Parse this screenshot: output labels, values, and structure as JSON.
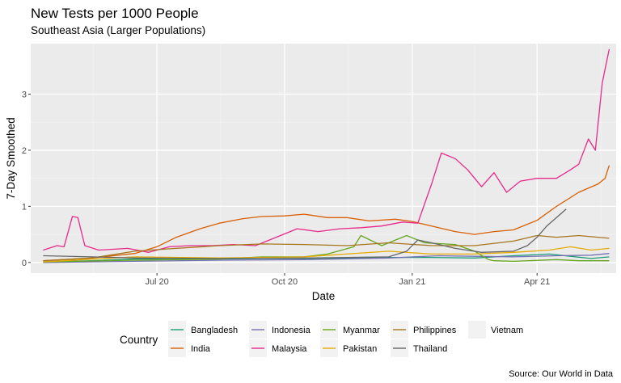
{
  "chart_data": {
    "type": "line",
    "title": "New Tests per 1000 People",
    "subtitle": "Southeast Asia (Larger Populations)",
    "xlabel": "Date",
    "ylabel": "7-Day Smoothed",
    "caption": "Source:  Our World in Data",
    "x_domain": [
      "2020-04-01",
      "2021-05-28"
    ],
    "ylim": [
      -0.19,
      3.9
    ],
    "x_ticks": [
      {
        "date": "2020-07-01",
        "label": "Jul 20"
      },
      {
        "date": "2020-10-01",
        "label": "Oct 20"
      },
      {
        "date": "2021-01-01",
        "label": "Jan 21"
      },
      {
        "date": "2021-04-01",
        "label": "Apr 21"
      }
    ],
    "y_ticks": [
      0,
      1,
      2,
      3
    ],
    "grid": true,
    "legend": {
      "title": "Country",
      "position": "bottom",
      "rows": [
        [
          "Bangladesh",
          "Indonesia",
          "Myanmar",
          "Philippines",
          "Vietnam"
        ],
        [
          "India",
          "Malaysia",
          "Pakistan",
          "Thailand"
        ]
      ]
    },
    "series": [
      {
        "name": "Bangladesh",
        "color": "#1B9E77",
        "x": [
          "2020-04-10",
          "2020-05-15",
          "2020-06-15",
          "2020-07-15",
          "2020-08-15",
          "2020-09-15",
          "2020-10-15",
          "2020-11-15",
          "2020-12-15",
          "2021-01-15",
          "2021-02-15",
          "2021-03-15",
          "2021-04-10",
          "2021-04-25",
          "2021-05-10",
          "2021-05-23"
        ],
        "y": [
          0.01,
          0.03,
          0.06,
          0.07,
          0.06,
          0.07,
          0.07,
          0.08,
          0.09,
          0.09,
          0.08,
          0.12,
          0.15,
          0.11,
          0.07,
          0.1
        ]
      },
      {
        "name": "India",
        "color": "#D95F02",
        "x": [
          "2020-04-10",
          "2020-05-15",
          "2020-06-15",
          "2020-07-01",
          "2020-07-15",
          "2020-08-01",
          "2020-08-15",
          "2020-09-01",
          "2020-09-15",
          "2020-10-01",
          "2020-10-15",
          "2020-11-01",
          "2020-11-15",
          "2020-12-01",
          "2020-12-20",
          "2021-01-01",
          "2021-01-15",
          "2021-02-01",
          "2021-02-15",
          "2021-03-01",
          "2021-03-15",
          "2021-04-01",
          "2021-04-15",
          "2021-05-01",
          "2021-05-15",
          "2021-05-20",
          "2021-05-23"
        ],
        "y": [
          0.03,
          0.08,
          0.16,
          0.28,
          0.45,
          0.6,
          0.7,
          0.78,
          0.82,
          0.83,
          0.86,
          0.8,
          0.8,
          0.74,
          0.77,
          0.73,
          0.65,
          0.55,
          0.5,
          0.55,
          0.58,
          0.75,
          1.0,
          1.25,
          1.4,
          1.5,
          1.73
        ]
      },
      {
        "name": "Indonesia",
        "color": "#7570B3",
        "x": [
          "2020-04-10",
          "2020-06-15",
          "2020-08-15",
          "2020-10-15",
          "2020-12-15",
          "2021-01-20",
          "2021-02-15",
          "2021-03-15",
          "2021-04-15",
          "2021-05-10",
          "2021-05-23"
        ],
        "y": [
          0.0,
          0.02,
          0.04,
          0.05,
          0.08,
          0.12,
          0.11,
          0.1,
          0.12,
          0.13,
          0.16
        ]
      },
      {
        "name": "Malaysia",
        "color": "#E7298A",
        "x": [
          "2020-04-10",
          "2020-04-20",
          "2020-04-25",
          "2020-05-01",
          "2020-05-05",
          "2020-05-10",
          "2020-05-20",
          "2020-06-10",
          "2020-06-25",
          "2020-07-10",
          "2020-07-25",
          "2020-08-10",
          "2020-08-25",
          "2020-09-10",
          "2020-09-25",
          "2020-10-10",
          "2020-10-25",
          "2020-11-10",
          "2020-11-25",
          "2020-12-10",
          "2020-12-25",
          "2021-01-05",
          "2021-01-15",
          "2021-01-22",
          "2021-02-01",
          "2021-02-10",
          "2021-02-20",
          "2021-03-01",
          "2021-03-10",
          "2021-03-20",
          "2021-04-01",
          "2021-04-15",
          "2021-04-25",
          "2021-05-01",
          "2021-05-08",
          "2021-05-13",
          "2021-05-18",
          "2021-05-23"
        ],
        "y": [
          0.22,
          0.3,
          0.28,
          0.82,
          0.8,
          0.3,
          0.22,
          0.25,
          0.18,
          0.28,
          0.3,
          0.3,
          0.32,
          0.3,
          0.45,
          0.6,
          0.55,
          0.6,
          0.62,
          0.65,
          0.72,
          0.7,
          1.4,
          1.95,
          1.85,
          1.65,
          1.35,
          1.6,
          1.25,
          1.45,
          1.5,
          1.5,
          1.65,
          1.75,
          2.2,
          2.0,
          3.2,
          3.8
        ]
      },
      {
        "name": "Myanmar",
        "color": "#66A61E",
        "x": [
          "2020-04-10",
          "2020-06-15",
          "2020-08-15",
          "2020-09-15",
          "2020-10-15",
          "2020-11-01",
          "2020-11-20",
          "2020-11-25",
          "2020-12-10",
          "2020-12-28",
          "2021-01-10",
          "2021-02-01",
          "2021-02-15",
          "2021-02-25",
          "2021-03-01",
          "2021-03-15",
          "2021-04-15",
          "2021-05-01",
          "2021-05-23"
        ],
        "y": [
          0.01,
          0.04,
          0.06,
          0.1,
          0.1,
          0.15,
          0.28,
          0.48,
          0.3,
          0.48,
          0.35,
          0.32,
          0.2,
          0.05,
          0.03,
          0.02,
          0.05,
          0.03,
          0.03
        ]
      },
      {
        "name": "Pakistan",
        "color": "#E6AB02",
        "x": [
          "2020-04-10",
          "2020-06-15",
          "2020-08-15",
          "2020-10-15",
          "2020-12-15",
          "2021-01-15",
          "2021-02-15",
          "2021-03-15",
          "2021-04-10",
          "2021-04-25",
          "2021-05-10",
          "2021-05-23"
        ],
        "y": [
          0.01,
          0.1,
          0.08,
          0.1,
          0.2,
          0.15,
          0.15,
          0.18,
          0.22,
          0.28,
          0.22,
          0.25
        ]
      },
      {
        "name": "Philippines",
        "color": "#A6761D",
        "x": [
          "2020-04-10",
          "2020-05-15",
          "2020-06-15",
          "2020-07-15",
          "2020-08-15",
          "2020-09-15",
          "2020-10-15",
          "2020-11-15",
          "2020-12-15",
          "2021-01-15",
          "2021-02-15",
          "2021-03-15",
          "2021-04-01",
          "2021-04-15",
          "2021-05-01",
          "2021-05-23"
        ],
        "y": [
          0.03,
          0.08,
          0.2,
          0.25,
          0.3,
          0.33,
          0.32,
          0.3,
          0.35,
          0.3,
          0.3,
          0.38,
          0.48,
          0.45,
          0.48,
          0.43
        ]
      },
      {
        "name": "Thailand",
        "color": "#666666",
        "x": [
          "2020-04-10",
          "2020-05-15",
          "2020-06-15",
          "2020-08-15",
          "2020-10-15",
          "2020-12-15",
          "2020-12-28",
          "2021-01-05",
          "2021-01-15",
          "2021-02-01",
          "2021-02-20",
          "2021-03-15",
          "2021-03-25",
          "2021-04-01",
          "2021-04-08",
          "2021-04-15",
          "2021-04-22"
        ],
        "y": [
          0.12,
          0.1,
          0.08,
          0.07,
          0.08,
          0.1,
          0.2,
          0.4,
          0.35,
          0.25,
          0.18,
          0.2,
          0.3,
          0.45,
          0.65,
          0.8,
          0.95
        ]
      },
      {
        "name": "Vietnam",
        "color": "#E5E5E5",
        "x": [],
        "y": []
      }
    ]
  }
}
